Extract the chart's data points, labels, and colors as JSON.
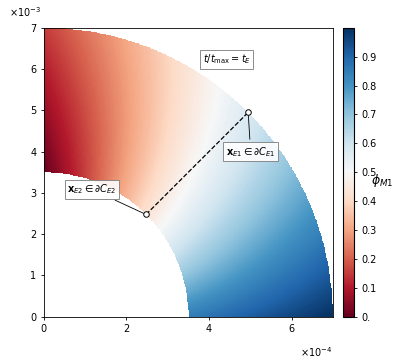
{
  "r_inner": 0.00035,
  "r_outer": 0.0007,
  "colorbar_label": "$\\phi_{M1}$",
  "colorbar_ticks": [
    0.0,
    0.1,
    0.2,
    0.3,
    0.4,
    0.5,
    0.6,
    0.7,
    0.8,
    0.9
  ],
  "colorbar_tick_labels": [
    "0.",
    "0.1",
    "0.2",
    "0.3",
    "0.4",
    "0.5",
    "0.6",
    "0.7",
    "0.8",
    "0.9"
  ],
  "annotation1_text": "$t/t_{\\mathrm{max}}=t_E$",
  "annotation2_text": "$\\mathbf{x}_{E1} \\in \\partial C_{E1}$",
  "annotation3_text": "$\\mathbf{x}_{E2} \\in \\partial C_{E2}$",
  "background_color": "#ffffff",
  "figsize": [
    4.0,
    3.64
  ],
  "dpi": 100,
  "ytick_vals": [
    0,
    0.0001,
    0.0002,
    0.0003,
    0.0004,
    0.0005,
    0.0006,
    0.0007
  ],
  "ytick_labels": [
    "0",
    "1",
    "2",
    "3",
    "4",
    "5",
    "6",
    "7"
  ],
  "xtick_vals": [
    0,
    0.0002,
    0.0004,
    0.0006
  ],
  "xtick_labels": [
    "0",
    "2",
    "4",
    "6"
  ]
}
